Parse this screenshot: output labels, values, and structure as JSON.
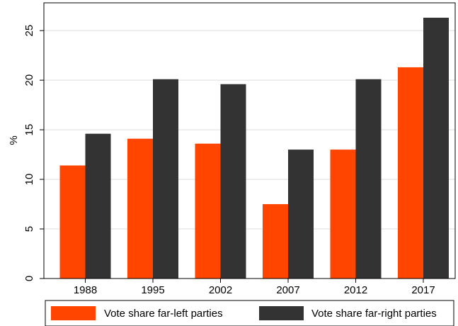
{
  "chart_data": {
    "type": "bar",
    "categories": [
      "1988",
      "1995",
      "2002",
      "2007",
      "2012",
      "2017"
    ],
    "series": [
      {
        "name": "Vote share far-left parties",
        "color": "#ff4500",
        "values": [
          11.4,
          14.1,
          13.6,
          7.5,
          13.0,
          21.3
        ]
      },
      {
        "name": "Vote share far-right parties",
        "color": "#333333",
        "values": [
          14.6,
          20.1,
          19.6,
          13.0,
          20.1,
          26.3
        ]
      }
    ],
    "ylabel": "%",
    "ylim": [
      0,
      27.8
    ],
    "yticks": [
      0,
      5,
      10,
      15,
      20,
      25
    ],
    "grid": true,
    "legend": "bottom"
  }
}
